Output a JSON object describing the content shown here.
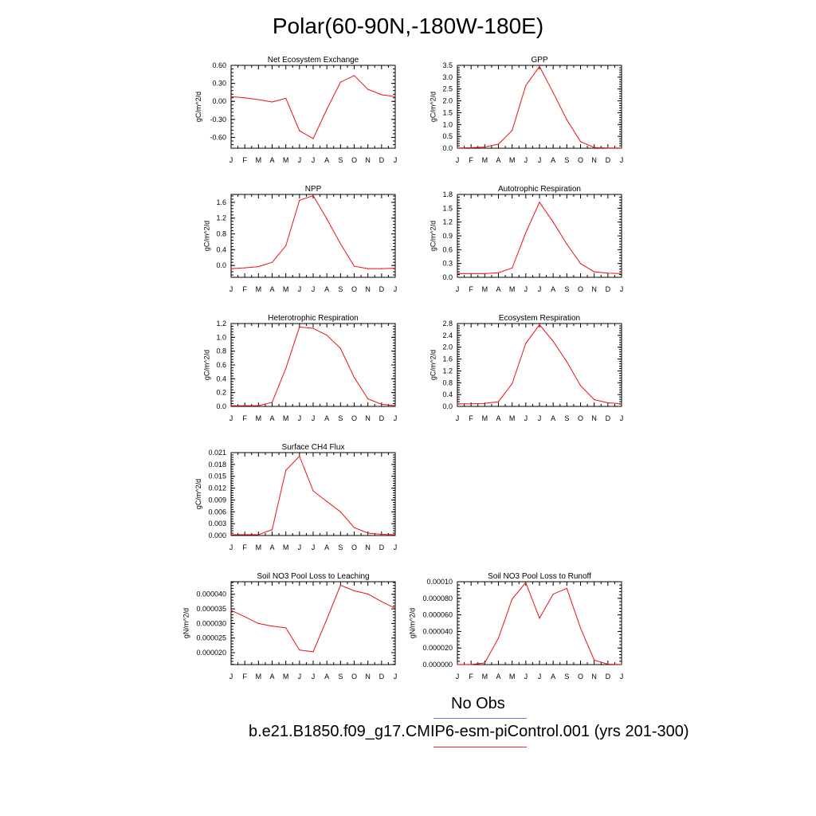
{
  "title": "Polar(60-90N,-180W-180E)",
  "month_labels": [
    "J",
    "F",
    "M",
    "A",
    "M",
    "J",
    "J",
    "A",
    "S",
    "O",
    "N",
    "D",
    "J"
  ],
  "colors": {
    "model": "#ee1111",
    "obs": "#6a7fe6"
  },
  "legend": {
    "obs_label": "No Obs",
    "model_label": "b.e21.B1850.f09_g17.CMIP6-esm-piControl.001 (yrs 201-300)"
  },
  "chart_data": [
    {
      "type": "line",
      "title": "Net Ecosystem Exchange",
      "ylabel": "gC/m^2/d",
      "ylim": [
        -0.78,
        0.6
      ],
      "yticks": [
        -0.6,
        -0.3,
        0.0,
        0.3,
        0.6
      ],
      "ytick_labels": [
        "-0.60",
        "-0.30",
        "0.00",
        "0.30",
        "0.60"
      ],
      "series": [
        {
          "values": [
            0.08,
            0.06,
            0.03,
            -0.01,
            0.05,
            -0.49,
            -0.62,
            -0.13,
            0.32,
            0.43,
            0.2,
            0.11,
            0.08
          ]
        }
      ]
    },
    {
      "type": "line",
      "title": "GPP",
      "ylabel": "gC/m^2/d",
      "ylim": [
        0.0,
        3.5
      ],
      "yticks": [
        0.0,
        0.5,
        1.0,
        1.5,
        2.0,
        2.5,
        3.0,
        3.5
      ],
      "ytick_labels": [
        "0.0",
        "0.5",
        "1.0",
        "1.5",
        "2.0",
        "2.5",
        "3.0",
        "3.5"
      ],
      "series": [
        {
          "values": [
            0.01,
            0.02,
            0.05,
            0.17,
            0.75,
            2.65,
            3.45,
            2.35,
            1.2,
            0.28,
            0.03,
            0.01,
            0.01
          ]
        }
      ]
    },
    {
      "type": "line",
      "title": "NPP",
      "ylabel": "gC/m^2/d",
      "ylim": [
        -0.3,
        1.8
      ],
      "yticks": [
        0.0,
        0.4,
        0.8,
        1.2,
        1.6
      ],
      "ytick_labels": [
        "0.0",
        "0.4",
        "0.8",
        "1.2",
        "1.6"
      ],
      "series": [
        {
          "values": [
            -0.08,
            -0.06,
            -0.03,
            0.08,
            0.5,
            1.65,
            1.77,
            1.18,
            0.55,
            -0.02,
            -0.08,
            -0.08,
            -0.07
          ]
        }
      ]
    },
    {
      "type": "line",
      "title": "Autotrophic Respiration",
      "ylabel": "gC/m^2/d",
      "ylim": [
        0.0,
        1.8
      ],
      "yticks": [
        0.0,
        0.3,
        0.6,
        0.9,
        1.2,
        1.5,
        1.8
      ],
      "ytick_labels": [
        "0.0",
        "0.3",
        "0.6",
        "0.9",
        "1.2",
        "1.5",
        "1.8"
      ],
      "series": [
        {
          "values": [
            0.08,
            0.08,
            0.08,
            0.1,
            0.2,
            0.97,
            1.63,
            1.2,
            0.72,
            0.3,
            0.12,
            0.09,
            0.08
          ]
        }
      ]
    },
    {
      "type": "line",
      "title": "Heterotrophic Respiration",
      "ylabel": "gC/m^2/d",
      "ylim": [
        0.0,
        1.2
      ],
      "yticks": [
        0.0,
        0.2,
        0.4,
        0.6,
        0.8,
        1.0,
        1.2
      ],
      "ytick_labels": [
        "0.0",
        "0.2",
        "0.4",
        "0.6",
        "0.8",
        "1.0",
        "1.2"
      ],
      "series": [
        {
          "values": [
            0.01,
            0.01,
            0.01,
            0.06,
            0.55,
            1.15,
            1.13,
            1.03,
            0.84,
            0.42,
            0.11,
            0.03,
            0.01
          ]
        }
      ]
    },
    {
      "type": "line",
      "title": "Ecosystem Respiration",
      "ylabel": "gC/m^2/d",
      "ylim": [
        0.0,
        2.8
      ],
      "yticks": [
        0.0,
        0.4,
        0.8,
        1.2,
        1.6,
        2.0,
        2.4,
        2.8
      ],
      "ytick_labels": [
        "0.0",
        "0.4",
        "0.8",
        "1.2",
        "1.6",
        "2.0",
        "2.4",
        "2.8"
      ],
      "series": [
        {
          "values": [
            0.09,
            0.09,
            0.1,
            0.16,
            0.77,
            2.13,
            2.76,
            2.2,
            1.51,
            0.7,
            0.23,
            0.12,
            0.09
          ]
        }
      ]
    },
    {
      "type": "line",
      "title": "Surface CH4 Flux",
      "ylabel": "gC/m^2/d",
      "ylim": [
        0.0,
        0.021
      ],
      "yticks": [
        0.0,
        0.003,
        0.006,
        0.009,
        0.012,
        0.015,
        0.018,
        0.021
      ],
      "ytick_labels": [
        "0.000",
        "0.003",
        "0.006",
        "0.009",
        "0.012",
        "0.015",
        "0.018",
        "0.021"
      ],
      "series": [
        {
          "values": [
            0.0002,
            0.0002,
            0.0002,
            0.0015,
            0.0165,
            0.0201,
            0.0113,
            0.0086,
            0.006,
            0.002,
            0.0006,
            0.0003,
            0.0002
          ]
        }
      ]
    },
    {
      "type": "line",
      "title": "Soil NO3 Pool Loss to Leaching",
      "ylabel": "gN/m^2/d",
      "ylim": [
        1.59e-05,
        4.43e-05
      ],
      "yticks": [
        2e-05,
        2.5e-05,
        3e-05,
        3.5e-05,
        4e-05
      ],
      "ytick_labels": [
        "0.000020",
        "0.000025",
        "0.000030",
        "0.000035",
        "0.000040"
      ],
      "series": [
        {
          "values": [
            3.45e-05,
            3.23e-05,
            3e-05,
            2.91e-05,
            2.85e-05,
            2.09e-05,
            2.03e-05,
            3.15e-05,
            4.31e-05,
            4.12e-05,
            4.01e-05,
            3.75e-05,
            3.52e-05
          ]
        }
      ]
    },
    {
      "type": "line",
      "title": "Soil NO3 Pool Loss to Runoff",
      "ylabel": "gN/m^2/d",
      "ylim": [
        0.0,
        0.0001
      ],
      "yticks": [
        0.0,
        2e-05,
        4e-05,
        6e-05,
        8e-05,
        0.0001
      ],
      "ytick_labels": [
        "0.000000",
        "0.000020",
        "0.000040",
        "0.000060",
        "0.000080",
        "0.00010"
      ],
      "series": [
        {
          "values": [
            1e-07,
            1e-07,
            2e-06,
            3.2e-05,
            7.9e-05,
            9.9e-05,
            5.6e-05,
            8.5e-05,
            9.2e-05,
            4.4e-05,
            5.5e-06,
            5e-07,
            1e-07
          ]
        }
      ]
    }
  ]
}
